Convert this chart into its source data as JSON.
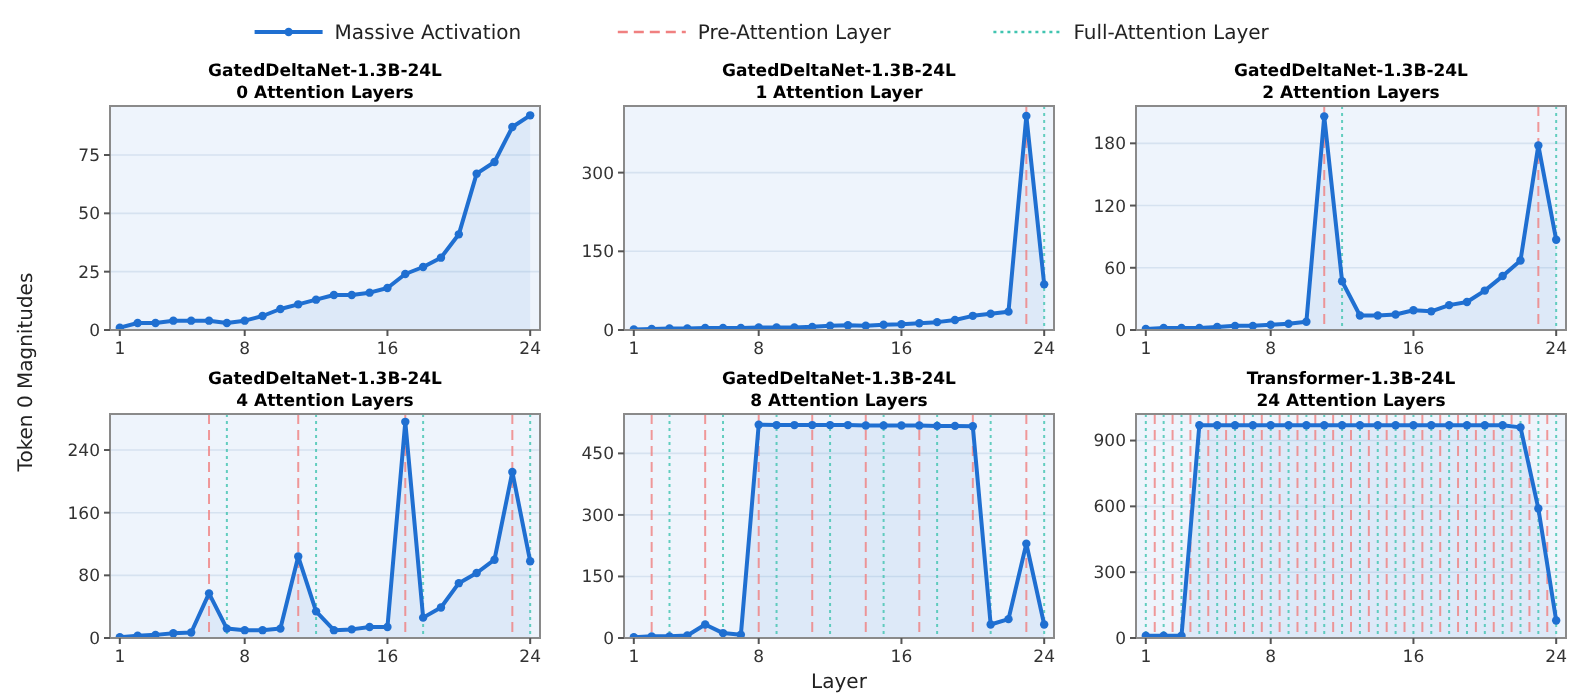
{
  "chart_data": [
    {
      "type": "area",
      "title": "GatedDeltaNet-1.3B-24L",
      "subtitle": "0 Attention Layers",
      "ylabel": "Token 0 Magnitudes",
      "marker": "circle",
      "grid": "y",
      "x": [
        1,
        2,
        3,
        4,
        5,
        6,
        7,
        8,
        9,
        10,
        11,
        12,
        13,
        14,
        15,
        16,
        17,
        18,
        19,
        20,
        21,
        22,
        23,
        24
      ],
      "xlim": [
        0.45,
        24.55
      ],
      "xticks": [
        1,
        8,
        16,
        24
      ],
      "ylim": [
        0,
        96
      ],
      "yticks": [
        0,
        25,
        50,
        75
      ],
      "series": [
        {
          "name": "Massive Activation",
          "color": "#1f6fd1",
          "values": [
            1,
            3,
            3,
            4,
            4,
            4,
            3,
            4,
            6,
            9,
            11,
            13,
            15,
            15,
            16,
            18,
            24,
            27,
            31,
            41,
            67,
            72,
            87,
            92
          ]
        }
      ]
    },
    {
      "type": "area",
      "title": "GatedDeltaNet-1.3B-24L",
      "subtitle": "1 Attention Layer",
      "legend": "top",
      "marker": "circle",
      "grid": "y",
      "x": [
        1,
        2,
        3,
        4,
        5,
        6,
        7,
        8,
        9,
        10,
        11,
        12,
        13,
        14,
        15,
        16,
        17,
        18,
        19,
        20,
        21,
        22,
        23,
        24
      ],
      "xlim": [
        0.45,
        24.55
      ],
      "xticks": [
        1,
        8,
        16,
        24
      ],
      "ylim": [
        0,
        427
      ],
      "yticks": [
        0,
        150,
        300
      ],
      "series": [
        {
          "name": "Massive Activation",
          "color": "#1f6fd1",
          "values": [
            1,
            2,
            3,
            3,
            4,
            4,
            4,
            5,
            5,
            5,
            6,
            8,
            9,
            8,
            10,
            11,
            13,
            15,
            19,
            27,
            31,
            35,
            408,
            87
          ]
        }
      ],
      "ref_lines": [
        {
          "axis": "x",
          "value": 23,
          "label": "Pre-Attention Layer",
          "color": "#f08080",
          "line_style": "dashed"
        },
        {
          "axis": "x",
          "value": 24,
          "label": "Full-Attention Layer",
          "color": "#40c4b0",
          "line_style": "dotted"
        }
      ]
    },
    {
      "type": "area",
      "title": "GatedDeltaNet-1.3B-24L",
      "subtitle": "2 Attention Layers",
      "marker": "circle",
      "grid": "y",
      "x": [
        1,
        2,
        3,
        4,
        5,
        6,
        7,
        8,
        9,
        10,
        11,
        12,
        13,
        14,
        15,
        16,
        17,
        18,
        19,
        20,
        21,
        22,
        23,
        24
      ],
      "xlim": [
        0.45,
        24.55
      ],
      "xticks": [
        1,
        8,
        16,
        24
      ],
      "ylim": [
        0,
        216
      ],
      "yticks": [
        0,
        60,
        120,
        180
      ],
      "series": [
        {
          "name": "Massive Activation",
          "color": "#1f6fd1",
          "values": [
            1,
            2,
            2,
            2,
            3,
            4,
            4,
            5,
            6,
            8,
            206,
            47,
            14,
            14,
            15,
            19,
            18,
            24,
            27,
            38,
            52,
            67,
            178,
            87
          ]
        }
      ],
      "ref_lines": [
        {
          "axis": "x",
          "value": 11,
          "color": "#f08080",
          "line_style": "dashed"
        },
        {
          "axis": "x",
          "value": 23,
          "color": "#f08080",
          "line_style": "dashed"
        },
        {
          "axis": "x",
          "value": 12,
          "color": "#40c4b0",
          "line_style": "dotted"
        },
        {
          "axis": "x",
          "value": 24,
          "color": "#40c4b0",
          "line_style": "dotted"
        }
      ]
    },
    {
      "type": "area",
      "title": "GatedDeltaNet-1.3B-24L",
      "subtitle": "4 Attention Layers",
      "marker": "circle",
      "grid": "y",
      "x": [
        1,
        2,
        3,
        4,
        5,
        6,
        7,
        8,
        9,
        10,
        11,
        12,
        13,
        14,
        15,
        16,
        17,
        18,
        19,
        20,
        21,
        22,
        23,
        24
      ],
      "xlim": [
        0.45,
        24.55
      ],
      "xticks": [
        1,
        8,
        16,
        24
      ],
      "ylim": [
        0,
        286
      ],
      "yticks": [
        0,
        80,
        160,
        240
      ],
      "series": [
        {
          "name": "Massive Activation",
          "color": "#1f6fd1",
          "values": [
            1,
            3,
            4,
            6,
            7,
            57,
            12,
            10,
            10,
            12,
            104,
            34,
            10,
            11,
            14,
            14,
            276,
            26,
            39,
            70,
            83,
            100,
            212,
            98
          ]
        }
      ],
      "ref_lines": [
        {
          "axis": "x",
          "value": 6,
          "color": "#f08080",
          "line_style": "dashed"
        },
        {
          "axis": "x",
          "value": 11,
          "color": "#f08080",
          "line_style": "dashed"
        },
        {
          "axis": "x",
          "value": 17,
          "color": "#f08080",
          "line_style": "dashed"
        },
        {
          "axis": "x",
          "value": 23,
          "color": "#f08080",
          "line_style": "dashed"
        },
        {
          "axis": "x",
          "value": 7,
          "color": "#40c4b0",
          "line_style": "dotted"
        },
        {
          "axis": "x",
          "value": 12,
          "color": "#40c4b0",
          "line_style": "dotted"
        },
        {
          "axis": "x",
          "value": 18,
          "color": "#40c4b0",
          "line_style": "dotted"
        },
        {
          "axis": "x",
          "value": 24,
          "color": "#40c4b0",
          "line_style": "dotted"
        }
      ]
    },
    {
      "type": "area",
      "title": "GatedDeltaNet-1.3B-24L",
      "subtitle": "8 Attention Layers",
      "xlabel": "Layer",
      "marker": "circle",
      "grid": "y",
      "x": [
        1,
        2,
        3,
        4,
        5,
        6,
        7,
        8,
        9,
        10,
        11,
        12,
        13,
        14,
        15,
        16,
        17,
        18,
        19,
        20,
        21,
        22,
        23,
        24
      ],
      "xlim": [
        0.45,
        24.55
      ],
      "xticks": [
        1,
        8,
        16,
        24
      ],
      "ylim": [
        0,
        546
      ],
      "yticks": [
        0,
        150,
        300,
        450
      ],
      "series": [
        {
          "name": "Massive Activation",
          "color": "#1f6fd1",
          "values": [
            2,
            4,
            4,
            6,
            33,
            12,
            8,
            520,
            519,
            519,
            519,
            519,
            519,
            518,
            518,
            518,
            518,
            517,
            517,
            516,
            33,
            46,
            230,
            33
          ]
        }
      ],
      "ref_lines": [
        {
          "axis": "x",
          "value": 2,
          "color": "#f08080",
          "line_style": "dashed"
        },
        {
          "axis": "x",
          "value": 5,
          "color": "#f08080",
          "line_style": "dashed"
        },
        {
          "axis": "x",
          "value": 8,
          "color": "#f08080",
          "line_style": "dashed"
        },
        {
          "axis": "x",
          "value": 11,
          "color": "#f08080",
          "line_style": "dashed"
        },
        {
          "axis": "x",
          "value": 14,
          "color": "#f08080",
          "line_style": "dashed"
        },
        {
          "axis": "x",
          "value": 17,
          "color": "#f08080",
          "line_style": "dashed"
        },
        {
          "axis": "x",
          "value": 20,
          "color": "#f08080",
          "line_style": "dashed"
        },
        {
          "axis": "x",
          "value": 23,
          "color": "#f08080",
          "line_style": "dashed"
        },
        {
          "axis": "x",
          "value": 3,
          "color": "#40c4b0",
          "line_style": "dotted"
        },
        {
          "axis": "x",
          "value": 6,
          "color": "#40c4b0",
          "line_style": "dotted"
        },
        {
          "axis": "x",
          "value": 9,
          "color": "#40c4b0",
          "line_style": "dotted"
        },
        {
          "axis": "x",
          "value": 12,
          "color": "#40c4b0",
          "line_style": "dotted"
        },
        {
          "axis": "x",
          "value": 15,
          "color": "#40c4b0",
          "line_style": "dotted"
        },
        {
          "axis": "x",
          "value": 18,
          "color": "#40c4b0",
          "line_style": "dotted"
        },
        {
          "axis": "x",
          "value": 21,
          "color": "#40c4b0",
          "line_style": "dotted"
        },
        {
          "axis": "x",
          "value": 24,
          "color": "#40c4b0",
          "line_style": "dotted"
        }
      ]
    },
    {
      "type": "area",
      "title": "Transformer-1.3B-24L",
      "subtitle": "24 Attention Layers",
      "marker": "circle",
      "grid": "y",
      "x": [
        1,
        2,
        3,
        4,
        5,
        6,
        7,
        8,
        9,
        10,
        11,
        12,
        13,
        14,
        15,
        16,
        17,
        18,
        19,
        20,
        21,
        22,
        23,
        24
      ],
      "xlim": [
        0.45,
        24.55
      ],
      "xticks": [
        1,
        8,
        16,
        24
      ],
      "ylim": [
        0,
        1021
      ],
      "yticks": [
        0,
        300,
        600,
        900
      ],
      "series": [
        {
          "name": "Massive Activation",
          "color": "#1f6fd1",
          "values": [
            10,
            10,
            10,
            970,
            970,
            970,
            970,
            970,
            970,
            970,
            970,
            970,
            970,
            970,
            970,
            970,
            970,
            970,
            970,
            970,
            970,
            960,
            590,
            80
          ]
        }
      ],
      "ref_lines": [
        {
          "axis": "x",
          "value": 1.5,
          "color": "#f08080",
          "line_style": "dashed"
        },
        {
          "axis": "x",
          "value": 2.5,
          "color": "#f08080",
          "line_style": "dashed"
        },
        {
          "axis": "x",
          "value": 3.5,
          "color": "#f08080",
          "line_style": "dashed"
        },
        {
          "axis": "x",
          "value": 4.5,
          "color": "#f08080",
          "line_style": "dashed"
        },
        {
          "axis": "x",
          "value": 5.5,
          "color": "#f08080",
          "line_style": "dashed"
        },
        {
          "axis": "x",
          "value": 6.5,
          "color": "#f08080",
          "line_style": "dashed"
        },
        {
          "axis": "x",
          "value": 7.5,
          "color": "#f08080",
          "line_style": "dashed"
        },
        {
          "axis": "x",
          "value": 8.5,
          "color": "#f08080",
          "line_style": "dashed"
        },
        {
          "axis": "x",
          "value": 9.5,
          "color": "#f08080",
          "line_style": "dashed"
        },
        {
          "axis": "x",
          "value": 10.5,
          "color": "#f08080",
          "line_style": "dashed"
        },
        {
          "axis": "x",
          "value": 11.5,
          "color": "#f08080",
          "line_style": "dashed"
        },
        {
          "axis": "x",
          "value": 12.5,
          "color": "#f08080",
          "line_style": "dashed"
        },
        {
          "axis": "x",
          "value": 13.5,
          "color": "#f08080",
          "line_style": "dashed"
        },
        {
          "axis": "x",
          "value": 14.5,
          "color": "#f08080",
          "line_style": "dashed"
        },
        {
          "axis": "x",
          "value": 15.5,
          "color": "#f08080",
          "line_style": "dashed"
        },
        {
          "axis": "x",
          "value": 16.5,
          "color": "#f08080",
          "line_style": "dashed"
        },
        {
          "axis": "x",
          "value": 17.5,
          "color": "#f08080",
          "line_style": "dashed"
        },
        {
          "axis": "x",
          "value": 18.5,
          "color": "#f08080",
          "line_style": "dashed"
        },
        {
          "axis": "x",
          "value": 19.5,
          "color": "#f08080",
          "line_style": "dashed"
        },
        {
          "axis": "x",
          "value": 20.5,
          "color": "#f08080",
          "line_style": "dashed"
        },
        {
          "axis": "x",
          "value": 21.5,
          "color": "#f08080",
          "line_style": "dashed"
        },
        {
          "axis": "x",
          "value": 22.5,
          "color": "#f08080",
          "line_style": "dashed"
        },
        {
          "axis": "x",
          "value": 23.5,
          "color": "#f08080",
          "line_style": "dashed"
        },
        {
          "axis": "x",
          "value": 1,
          "color": "#40c4b0",
          "line_style": "dotted"
        },
        {
          "axis": "x",
          "value": 2,
          "color": "#40c4b0",
          "line_style": "dotted"
        },
        {
          "axis": "x",
          "value": 3,
          "color": "#40c4b0",
          "line_style": "dotted"
        },
        {
          "axis": "x",
          "value": 4,
          "color": "#40c4b0",
          "line_style": "dotted"
        },
        {
          "axis": "x",
          "value": 5,
          "color": "#40c4b0",
          "line_style": "dotted"
        },
        {
          "axis": "x",
          "value": 6,
          "color": "#40c4b0",
          "line_style": "dotted"
        },
        {
          "axis": "x",
          "value": 7,
          "color": "#40c4b0",
          "line_style": "dotted"
        },
        {
          "axis": "x",
          "value": 8,
          "color": "#40c4b0",
          "line_style": "dotted"
        },
        {
          "axis": "x",
          "value": 9,
          "color": "#40c4b0",
          "line_style": "dotted"
        },
        {
          "axis": "x",
          "value": 10,
          "color": "#40c4b0",
          "line_style": "dotted"
        },
        {
          "axis": "x",
          "value": 11,
          "color": "#40c4b0",
          "line_style": "dotted"
        },
        {
          "axis": "x",
          "value": 12,
          "color": "#40c4b0",
          "line_style": "dotted"
        },
        {
          "axis": "x",
          "value": 13,
          "color": "#40c4b0",
          "line_style": "dotted"
        },
        {
          "axis": "x",
          "value": 14,
          "color": "#40c4b0",
          "line_style": "dotted"
        },
        {
          "axis": "x",
          "value": 15,
          "color": "#40c4b0",
          "line_style": "dotted"
        },
        {
          "axis": "x",
          "value": 16,
          "color": "#40c4b0",
          "line_style": "dotted"
        },
        {
          "axis": "x",
          "value": 17,
          "color": "#40c4b0",
          "line_style": "dotted"
        },
        {
          "axis": "x",
          "value": 18,
          "color": "#40c4b0",
          "line_style": "dotted"
        },
        {
          "axis": "x",
          "value": 19,
          "color": "#40c4b0",
          "line_style": "dotted"
        },
        {
          "axis": "x",
          "value": 20,
          "color": "#40c4b0",
          "line_style": "dotted"
        },
        {
          "axis": "x",
          "value": 21,
          "color": "#40c4b0",
          "line_style": "dotted"
        },
        {
          "axis": "x",
          "value": 22,
          "color": "#40c4b0",
          "line_style": "dotted"
        },
        {
          "axis": "x",
          "value": 23,
          "color": "#40c4b0",
          "line_style": "dotted"
        },
        {
          "axis": "x",
          "value": 24,
          "color": "#40c4b0",
          "line_style": "dotted"
        }
      ]
    }
  ]
}
